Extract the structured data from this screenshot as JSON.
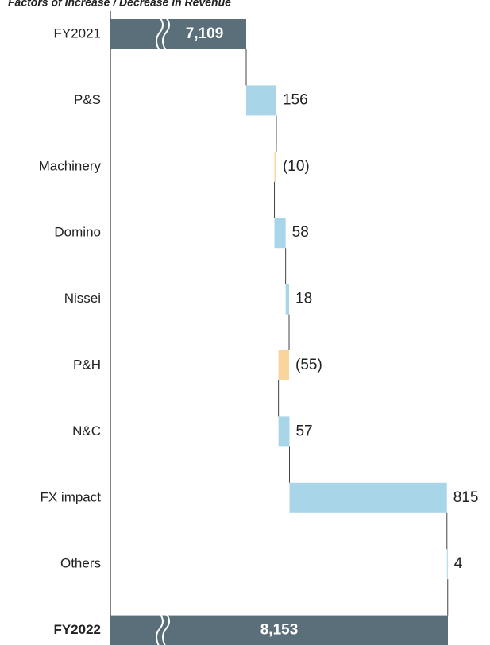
{
  "chart_data": {
    "type": "waterfall",
    "title": "Factors of Increase / Decrease in Revenue",
    "categories": [
      "FY2021",
      "P&S",
      "Machinery",
      "Domino",
      "Nissei",
      "P&H",
      "N&C",
      "FX impact",
      "Others",
      "FY2022"
    ],
    "values": [
      7109,
      156,
      -10,
      58,
      18,
      -55,
      57,
      815,
      4,
      8153
    ],
    "value_labels": [
      "7,109",
      "156",
      "(10)",
      "58",
      "18",
      "(55)",
      "57",
      "815",
      "4",
      "8,153"
    ],
    "colors": {
      "total": "#5b6f7b",
      "increase": "#a9d5e9",
      "decrease": "#f9d49c"
    }
  }
}
